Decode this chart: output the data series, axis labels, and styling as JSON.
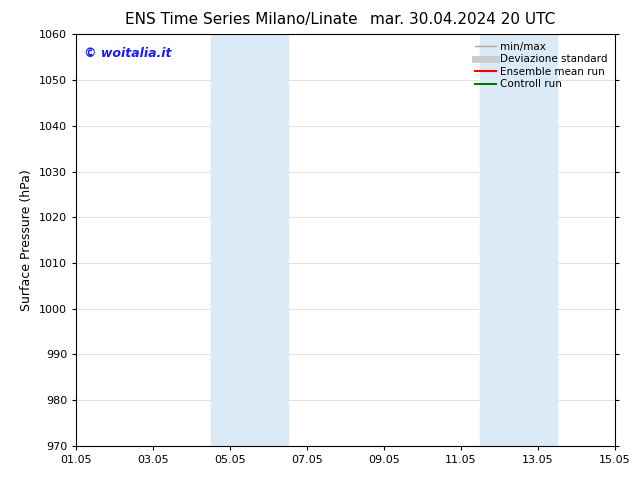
{
  "title_left": "ENS Time Series Milano/Linate",
  "title_right": "mar. 30.04.2024 20 UTC",
  "ylabel": "Surface Pressure (hPa)",
  "ylim": [
    970,
    1060
  ],
  "yticks": [
    970,
    980,
    990,
    1000,
    1010,
    1020,
    1030,
    1040,
    1050,
    1060
  ],
  "xticks_labels": [
    "01.05",
    "03.05",
    "05.05",
    "07.05",
    "09.05",
    "11.05",
    "13.05",
    "15.05"
  ],
  "xtick_positions": [
    0,
    2,
    4,
    6,
    8,
    10,
    12,
    14
  ],
  "shaded_bands": [
    {
      "x_start": 3.5,
      "x_end": 5.5
    },
    {
      "x_start": 10.5,
      "x_end": 12.5
    }
  ],
  "shaded_color": "#daeaf7",
  "watermark_text": "© woitalia.it",
  "watermark_color": "#1a1aff",
  "legend_entries": [
    {
      "label": "min/max",
      "color": "#aaaaaa",
      "lw": 1.0
    },
    {
      "label": "Deviazione standard",
      "color": "#cccccc",
      "lw": 5
    },
    {
      "label": "Ensemble mean run",
      "color": "#ff0000",
      "lw": 1.5
    },
    {
      "label": "Controll run",
      "color": "#007700",
      "lw": 1.5
    }
  ],
  "bg_color": "#ffffff",
  "grid_color": "#dddddd",
  "title_fontsize": 11,
  "tick_fontsize": 8,
  "ylabel_fontsize": 9,
  "watermark_fontsize": 9,
  "legend_fontsize": 7.5
}
